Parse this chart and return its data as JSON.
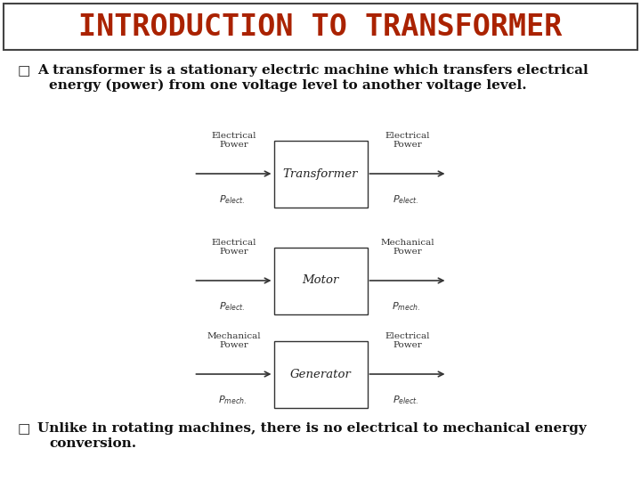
{
  "title": "INTRODUCTION TO TRANSFORMER",
  "title_color": "#aa2200",
  "bg_color": "#ffffff",
  "title_fontsize": 24,
  "bullet1_line1": "A transformer is a stationary electric machine which transfers electrical",
  "bullet1_line2": "energy (power) from one voltage level to another voltage level.",
  "bullet2_line1": "Unlike in rotating machines, there is no electrical to mechanical energy",
  "bullet2_line2": "conversion.",
  "bullet_fontsize": 11,
  "diagrams": [
    {
      "label": "Transformer",
      "left_top": "Electrical\nPower",
      "right_top": "Electrical\nPower",
      "left_bot_main": "P",
      "left_bot_sub": "elect.",
      "right_bot_main": "P",
      "right_bot_sub": "elect."
    },
    {
      "label": "Motor",
      "left_top": "Electrical\nPower",
      "right_top": "Mechanical\nPower",
      "left_bot_main": "P",
      "left_bot_sub": "elect.",
      "right_bot_main": "P",
      "right_bot_sub": "mech."
    },
    {
      "label": "Generator",
      "left_top": "Mechanical\nPower",
      "right_top": "Electrical\nPower",
      "left_bot_main": "P",
      "left_bot_sub": "mech.",
      "right_bot_main": "P",
      "right_bot_sub": "elect."
    }
  ]
}
